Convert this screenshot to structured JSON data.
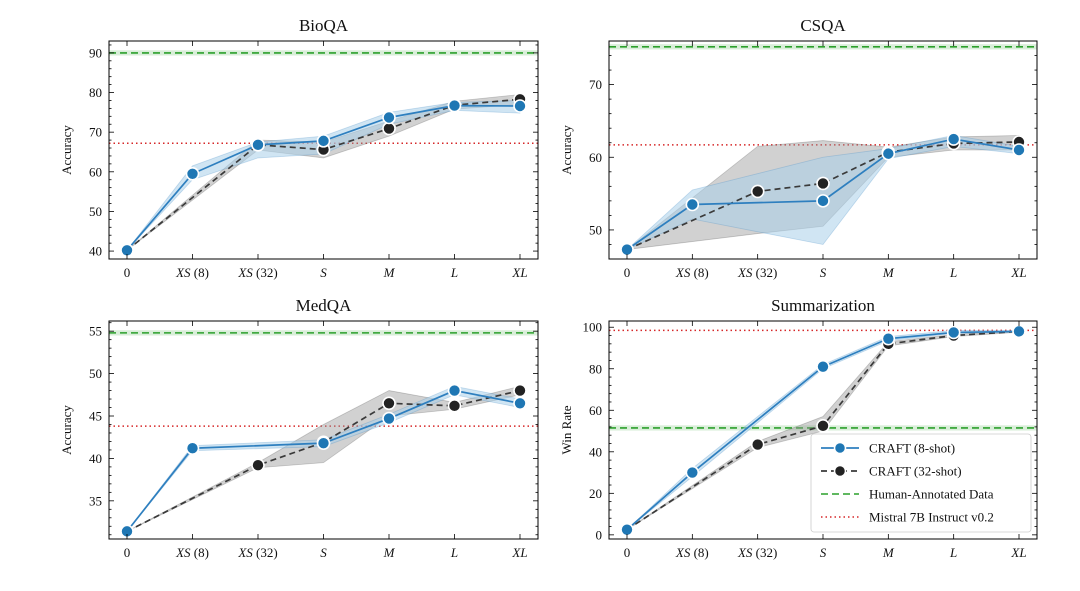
{
  "chart_data": [
    {
      "type": "line",
      "title": "BioQA",
      "ylabel": "Accuracy",
      "ylim": [
        38,
        93
      ],
      "yticks": [
        40,
        50,
        60,
        70,
        80,
        90
      ],
      "categories": [
        "0",
        "XS (8)",
        "XS (32)",
        "S",
        "M",
        "L",
        "XL"
      ],
      "series": [
        {
          "name": "CRAFT (8-shot)",
          "values": [
            40.2,
            59.5,
            66.8,
            67.8,
            73.7,
            76.7,
            76.6
          ],
          "lower": [
            40.2,
            58.0,
            63.5,
            64.5,
            72.0,
            75.5,
            74.8
          ],
          "upper": [
            40.2,
            61.5,
            67.5,
            69.0,
            75.0,
            77.5,
            78.0
          ]
        },
        {
          "name": "CRAFT (32-shot)",
          "values": [
            40.2,
            null,
            66.8,
            65.6,
            70.9,
            76.8,
            78.3
          ],
          "lower": [
            40.2,
            null,
            65.5,
            63.5,
            69.0,
            75.8,
            77.0
          ],
          "upper": [
            40.2,
            null,
            68.0,
            67.5,
            72.8,
            77.8,
            79.5
          ]
        }
      ],
      "reference_lines": [
        {
          "name": "Human-Annotated Data",
          "value": 90.0
        },
        {
          "name": "Mistral 7B Instruct v0.2",
          "value": 67.2
        }
      ]
    },
    {
      "type": "line",
      "title": "CSQA",
      "ylabel": "Accuracy",
      "ylim": [
        46,
        76
      ],
      "yticks": [
        50,
        60,
        70
      ],
      "categories": [
        "0",
        "XS (8)",
        "XS (32)",
        "S",
        "M",
        "L",
        "XL"
      ],
      "series": [
        {
          "name": "CRAFT (8-shot)",
          "values": [
            47.3,
            53.5,
            null,
            54.0,
            60.5,
            62.5,
            61.0
          ],
          "lower": [
            47.3,
            51.5,
            null,
            48.0,
            59.8,
            61.5,
            60.5
          ],
          "upper": [
            47.3,
            55.5,
            null,
            60.0,
            61.2,
            63.0,
            61.5
          ]
        },
        {
          "name": "CRAFT (32-shot)",
          "values": [
            47.3,
            null,
            55.3,
            56.4,
            60.7,
            61.9,
            62.1
          ],
          "lower": [
            47.3,
            null,
            49.5,
            50.5,
            60.0,
            61.0,
            61.0
          ],
          "upper": [
            47.3,
            null,
            61.5,
            62.3,
            61.4,
            62.8,
            63.0
          ]
        }
      ],
      "reference_lines": [
        {
          "name": "Human-Annotated Data",
          "value": 75.2
        },
        {
          "name": "Mistral 7B Instruct v0.2",
          "value": 61.7
        }
      ]
    },
    {
      "type": "line",
      "title": "MedQA",
      "ylabel": "Accuracy",
      "ylim": [
        30.5,
        56.2
      ],
      "yticks": [
        35,
        40,
        45,
        50,
        55
      ],
      "categories": [
        "0",
        "XS (8)",
        "XS (32)",
        "S",
        "M",
        "L",
        "XL"
      ],
      "series": [
        {
          "name": "CRAFT (8-shot)",
          "values": [
            31.4,
            41.2,
            null,
            41.8,
            44.7,
            48.0,
            46.5
          ],
          "lower": [
            31.4,
            40.9,
            null,
            41.4,
            44.2,
            47.5,
            46.0
          ],
          "upper": [
            31.4,
            41.5,
            null,
            42.2,
            45.2,
            48.5,
            47.0
          ]
        },
        {
          "name": "CRAFT (32-shot)",
          "values": [
            31.4,
            null,
            39.2,
            41.9,
            46.5,
            46.2,
            48.0
          ],
          "lower": [
            31.4,
            null,
            38.9,
            39.5,
            45.0,
            45.8,
            47.5
          ],
          "upper": [
            31.4,
            null,
            39.5,
            44.0,
            48.0,
            46.6,
            48.5
          ]
        }
      ],
      "reference_lines": [
        {
          "name": "Human-Annotated Data",
          "value": 54.8
        },
        {
          "name": "Mistral 7B Instruct v0.2",
          "value": 43.8
        }
      ]
    },
    {
      "type": "line",
      "title": "Summarization",
      "ylabel": "Win Rate",
      "ylim": [
        -2,
        103
      ],
      "yticks": [
        0,
        20,
        40,
        60,
        80,
        100
      ],
      "categories": [
        "0",
        "XS (8)",
        "XS (32)",
        "S",
        "M",
        "L",
        "XL"
      ],
      "series": [
        {
          "name": "CRAFT (8-shot)",
          "values": [
            2.5,
            30.0,
            null,
            81.0,
            94.5,
            97.5,
            98.0
          ],
          "lower": [
            2.5,
            28.0,
            null,
            80.0,
            93.5,
            97.0,
            97.6
          ],
          "upper": [
            2.5,
            32.0,
            null,
            82.0,
            95.5,
            98.5,
            98.4
          ]
        },
        {
          "name": "CRAFT (32-shot)",
          "values": [
            2.5,
            null,
            43.5,
            52.5,
            92.0,
            96.0,
            98.0
          ],
          "lower": [
            2.5,
            null,
            42.0,
            50.0,
            91.0,
            95.5,
            97.6
          ],
          "upper": [
            2.5,
            null,
            45.0,
            57.0,
            93.0,
            96.5,
            98.4
          ]
        }
      ],
      "reference_lines": [
        {
          "name": "Human-Annotated Data",
          "value": 51.5
        },
        {
          "name": "Mistral 7B Instruct v0.2",
          "value": 98.5
        }
      ],
      "legend": {
        "position": "lower-right",
        "entries": [
          "CRAFT (8-shot)",
          "CRAFT (32-shot)",
          "Human-Annotated Data",
          "Mistral 7B Instruct v0.2"
        ]
      }
    }
  ],
  "colors": {
    "craft8": "#2e7fbf",
    "craft8_band": "#a9cfe9",
    "craft32": "#3a3a3a",
    "craft32_band": "#9a9a9a",
    "human": "#2ca02c",
    "mistral": "#d62728",
    "point_fill_8": "#1f77b4",
    "point_fill_32": "#222222"
  }
}
